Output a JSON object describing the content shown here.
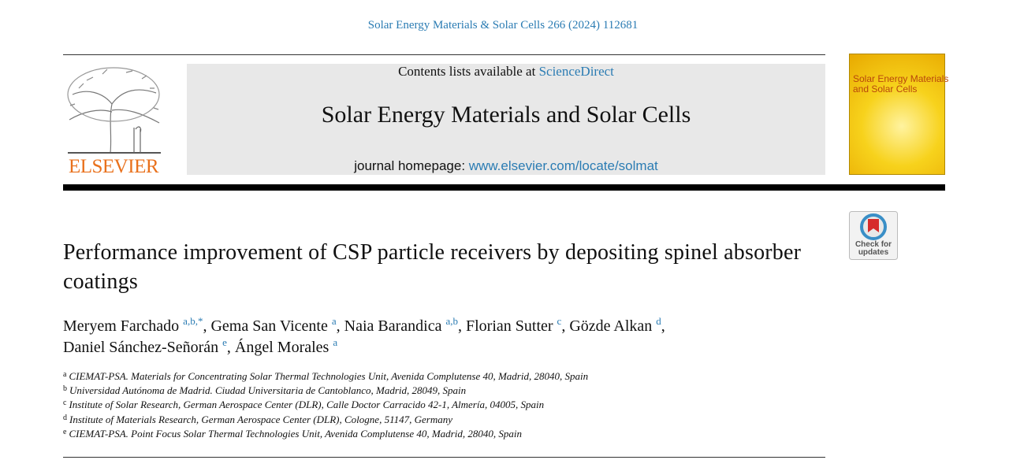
{
  "citation": "Solar Energy Materials & Solar Cells 266 (2024) 112681",
  "header": {
    "contents_prefix": "Contents lists available at",
    "contents_link": "ScienceDirect",
    "journal_title": "Solar Energy Materials and Solar Cells",
    "homepage_prefix": "journal homepage:",
    "homepage_link": "www.elsevier.com/locate/solmat",
    "publisher": "ELSEVIER"
  },
  "cover": {
    "title_lines": [
      "Solar Energy Materials",
      "and Solar Cells"
    ]
  },
  "check_updates": {
    "lines": [
      "Check for",
      "updates"
    ]
  },
  "title": "Performance improvement of CSP particle receivers by depositing spinel absorber coatings",
  "authors": {
    "separator": ",",
    "list": [
      {
        "name": "Meryem Farchado",
        "affil": "a,b,*"
      },
      {
        "name": "Gema San Vicente",
        "affil": "a"
      },
      {
        "name": "Naia Barandica",
        "affil": "a,b"
      },
      {
        "name": "Florian Sutter",
        "affil": "c"
      },
      {
        "name": "Gözde Alkan",
        "affil": "d"
      },
      {
        "name": "Daniel Sánchez-Señorán",
        "affil": "e"
      },
      {
        "name": "Ángel Morales",
        "affil": "a"
      }
    ]
  },
  "affiliations": [
    {
      "label": "a",
      "text": "CIEMAT-PSA. Materials for Concentrating Solar Thermal Technologies Unit, Avenida Complutense 40, Madrid, 28040, Spain"
    },
    {
      "label": "b",
      "text": "Universidad Autónoma de Madrid. Ciudad Universitaria de Cantoblanco, Madrid, 28049, Spain"
    },
    {
      "label": "c",
      "text": "Institute of Solar Research, German Aerospace Center (DLR), Calle Doctor Carracido 42-1, Almería, 04005, Spain"
    },
    {
      "label": "d",
      "text": "Institute of Materials Research, German Aerospace Center (DLR), Cologne, 51147, Germany"
    },
    {
      "label": "e",
      "text": "CIEMAT-PSA. Point Focus Solar Thermal Technologies Unit, Avenida Complutense 40, Madrid, 28040, Spain"
    }
  ]
}
